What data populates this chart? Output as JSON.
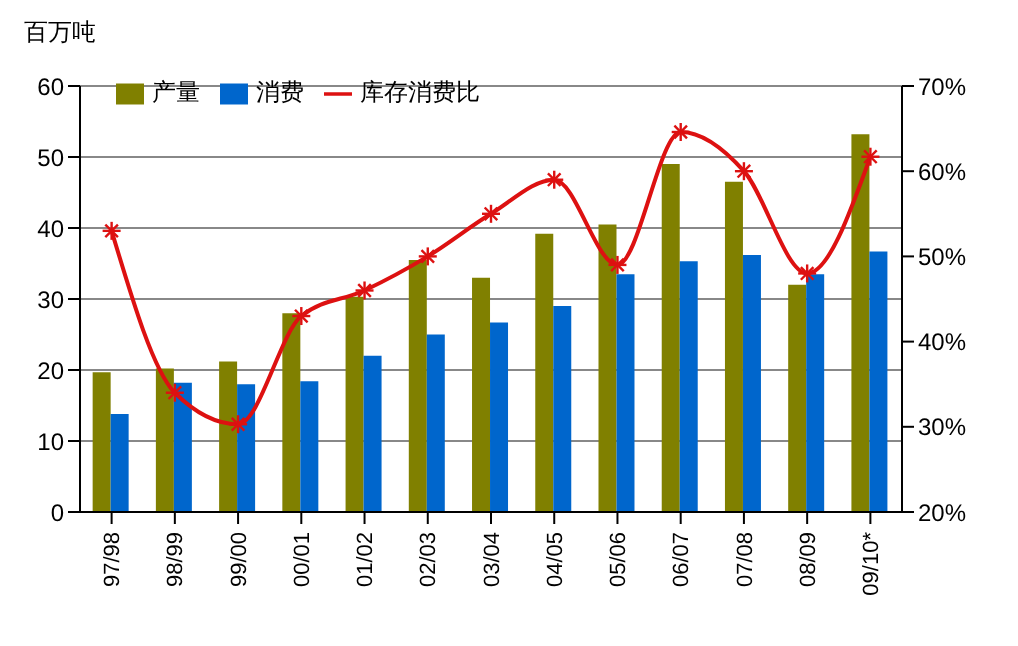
{
  "chart_data": {
    "type": "bar",
    "ylabel": "百万吨",
    "categories": [
      "97/98",
      "98/99",
      "99/00",
      "00/01",
      "01/02",
      "02/03",
      "03/04",
      "04/05",
      "05/06",
      "06/07",
      "07/08",
      "08/09",
      "09/10*"
    ],
    "series": [
      {
        "name": "产量",
        "color": "#808000",
        "values": [
          19.7,
          20.2,
          21.2,
          28,
          30.3,
          35.5,
          33,
          39.2,
          40.5,
          49,
          46.5,
          32,
          53.2
        ]
      },
      {
        "name": "消费",
        "color": "#0066cc",
        "values": [
          13.8,
          18.2,
          18,
          18.4,
          22,
          25,
          26.7,
          29,
          33.5,
          35.3,
          36.2,
          33.5,
          36.7
        ]
      },
      {
        "name": "库存消费比",
        "type": "line",
        "axis": "y2",
        "color": "#dd1111",
        "marker": "cross",
        "values": [
          53,
          34,
          30.3,
          43,
          46,
          50,
          55,
          59,
          49,
          64.6,
          60,
          48,
          61.7
        ]
      }
    ],
    "ylim": [
      0,
      60
    ],
    "yticks": [
      0,
      10,
      20,
      30,
      40,
      50,
      60
    ],
    "y2lim": [
      20,
      70
    ],
    "y2ticks": [
      {
        "value": 20,
        "label": "20%"
      },
      {
        "value": 30,
        "label": "30%"
      },
      {
        "value": 40,
        "label": "40%"
      },
      {
        "value": 50,
        "label": "50%"
      },
      {
        "value": 60,
        "label": "60%"
      },
      {
        "value": 70,
        "label": "70%"
      }
    ],
    "grid": "y",
    "legend": "top left"
  }
}
